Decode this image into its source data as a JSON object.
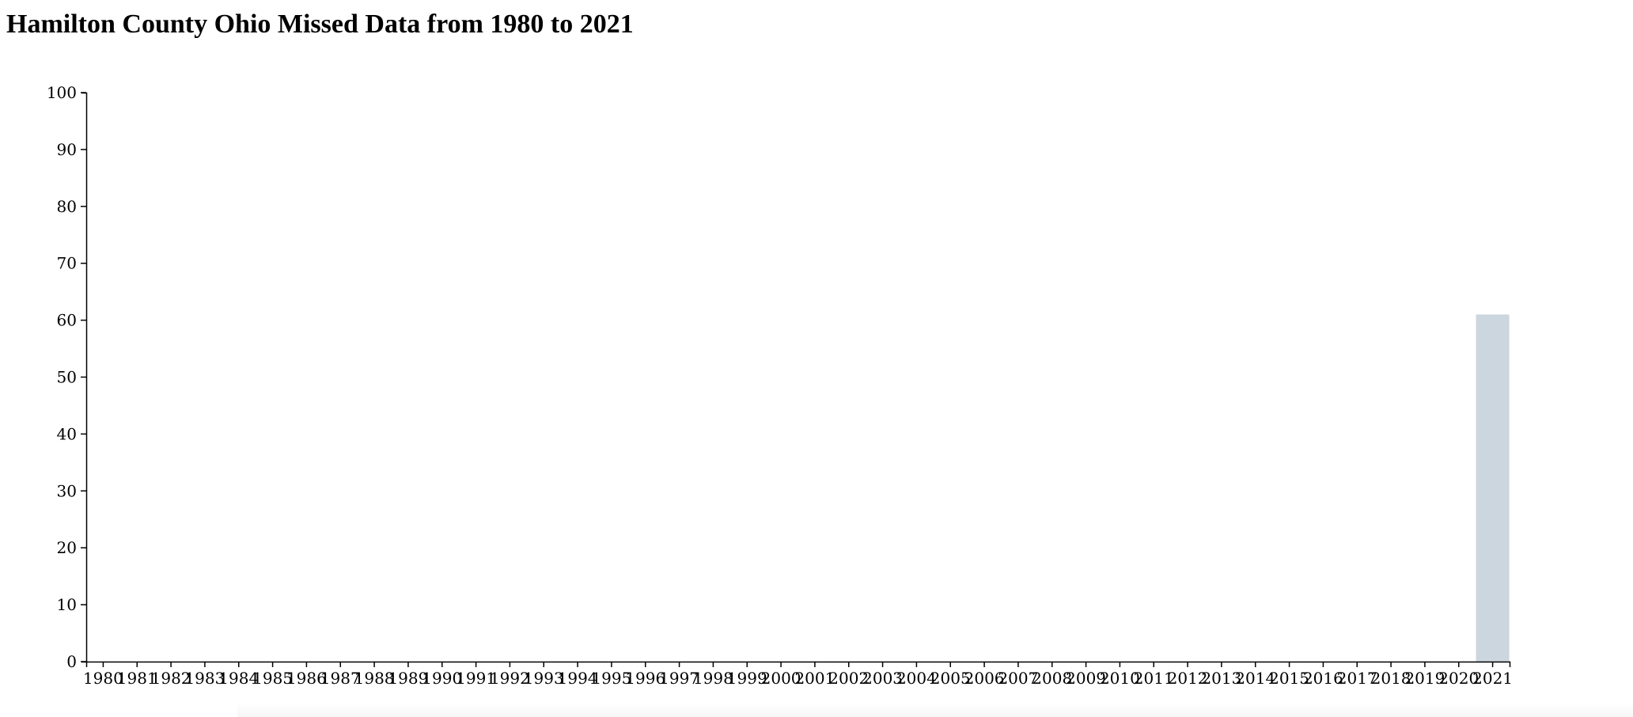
{
  "title": "Hamilton County Ohio Missed Data from 1980 to 2021",
  "colors": {
    "bar": "#cbd6de",
    "axis": "#000000",
    "background": "#ffffff"
  },
  "chart_data": {
    "type": "bar",
    "title": "Hamilton County Ohio Missed Data from 1980 to 2021",
    "xlabel": "",
    "ylabel": "",
    "ylim": [
      0,
      100
    ],
    "yticks": [
      0,
      10,
      20,
      30,
      40,
      50,
      60,
      70,
      80,
      90,
      100
    ],
    "grid": false,
    "categories": [
      "1980",
      "1981",
      "1982",
      "1983",
      "1984",
      "1985",
      "1986",
      "1987",
      "1988",
      "1989",
      "1990",
      "1991",
      "1992",
      "1993",
      "1994",
      "1995",
      "1996",
      "1997",
      "1998",
      "1999",
      "2000",
      "2001",
      "2002",
      "2003",
      "2004",
      "2005",
      "2006",
      "2007",
      "2008",
      "2009",
      "2010",
      "2011",
      "2012",
      "2013",
      "2014",
      "2015",
      "2016",
      "2017",
      "2018",
      "2019",
      "2020",
      "2021"
    ],
    "values": [
      0,
      0,
      0,
      0,
      0,
      0,
      0,
      0,
      0,
      0,
      0,
      0,
      0,
      0,
      0,
      0,
      0,
      0,
      0,
      0,
      0,
      0,
      0,
      0,
      0,
      0,
      0,
      0,
      0,
      0,
      0,
      0,
      0,
      0,
      0,
      0,
      0,
      0,
      0,
      0,
      0,
      61
    ]
  }
}
